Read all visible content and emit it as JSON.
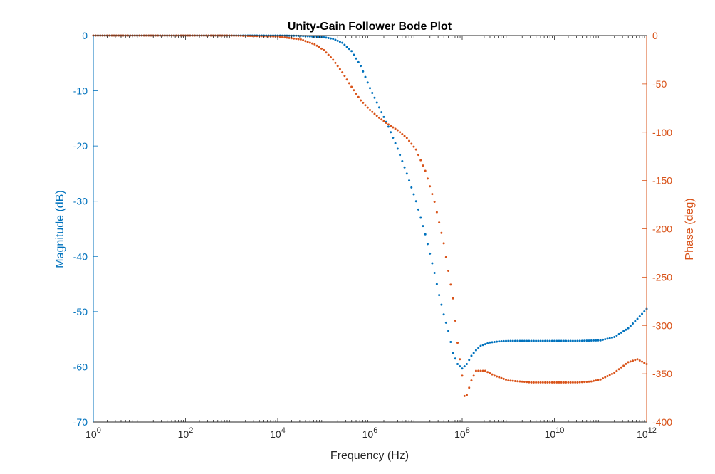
{
  "chart_data": {
    "type": "scatter",
    "title": "Unity-Gain Follower Bode Plot",
    "xlabel": "Frequency (Hz)",
    "ylabel_left": "Magnitude (dB)",
    "ylabel_right": "Phase (deg)",
    "x_scale": "log",
    "xlim": [
      1,
      1000000000000
    ],
    "ylim_left": [
      -70,
      0
    ],
    "ylim_right": [
      -400,
      0
    ],
    "x_ticks": [
      {
        "base": "10",
        "exp": "0"
      },
      {
        "base": "10",
        "exp": "2"
      },
      {
        "base": "10",
        "exp": "4"
      },
      {
        "base": "10",
        "exp": "6"
      },
      {
        "base": "10",
        "exp": "8"
      },
      {
        "base": "10",
        "exp": "10"
      },
      {
        "base": "10",
        "exp": "12"
      }
    ],
    "y_left_ticks": [
      "0",
      "-10",
      "-20",
      "-30",
      "-40",
      "-50",
      "-60",
      "-70"
    ],
    "y_right_ticks": [
      "0",
      "-50",
      "-100",
      "-150",
      "-200",
      "-250",
      "-300",
      "-350",
      "-400"
    ],
    "grid": false,
    "colors": {
      "magnitude": "#0072BD",
      "phase": "#D95319",
      "axes": "#262626"
    },
    "series": [
      {
        "axis": "left",
        "log10_x": [
          0,
          1,
          2,
          3,
          4,
          4.5,
          5,
          5.2,
          5.4,
          5.6,
          5.8,
          6,
          6.2,
          6.4,
          6.6,
          6.8,
          7,
          7.2,
          7.4,
          7.5,
          7.6,
          7.7,
          7.8,
          7.9,
          8,
          8.1,
          8.2,
          8.3,
          8.4,
          8.6,
          8.8,
          9,
          9.5,
          10,
          10.5,
          11,
          11.3,
          11.6,
          11.8,
          12
        ],
        "values": [
          0,
          0,
          0,
          0,
          0,
          -0.05,
          -0.3,
          -0.6,
          -1.3,
          -2.8,
          -5.5,
          -9.5,
          -13,
          -16.5,
          -20.5,
          -25,
          -30,
          -36,
          -43,
          -47,
          -50.5,
          -53.5,
          -57.5,
          -59.5,
          -60.3,
          -59.5,
          -58,
          -57,
          -56.2,
          -55.6,
          -55.4,
          -55.3,
          -55.3,
          -55.3,
          -55.3,
          -55.2,
          -54.6,
          -53,
          -51.3,
          -49.5
        ]
      },
      {
        "axis": "right",
        "log10_x": [
          0,
          1,
          2,
          3,
          4,
          4.5,
          4.8,
          5,
          5.2,
          5.4,
          5.6,
          5.8,
          6,
          6.2,
          6.4,
          6.6,
          6.8,
          7,
          7.2,
          7.4,
          7.6,
          7.8,
          7.9,
          8,
          8.05,
          8.1,
          8.2,
          8.3,
          8.5,
          8.7,
          9,
          9.5,
          10,
          10.5,
          10.8,
          11,
          11.3,
          11.6,
          11.8,
          12
        ],
        "values": [
          0,
          0,
          0,
          0,
          -1,
          -4,
          -9,
          -15,
          -25,
          -38,
          -53,
          -67,
          -77,
          -85,
          -92,
          -98,
          -106,
          -118,
          -140,
          -172,
          -215,
          -272,
          -318,
          -352,
          -373,
          -372,
          -357,
          -347,
          -347,
          -352,
          -357,
          -359,
          -359,
          -359,
          -358,
          -356,
          -349,
          -338,
          -335,
          -340
        ]
      }
    ]
  }
}
